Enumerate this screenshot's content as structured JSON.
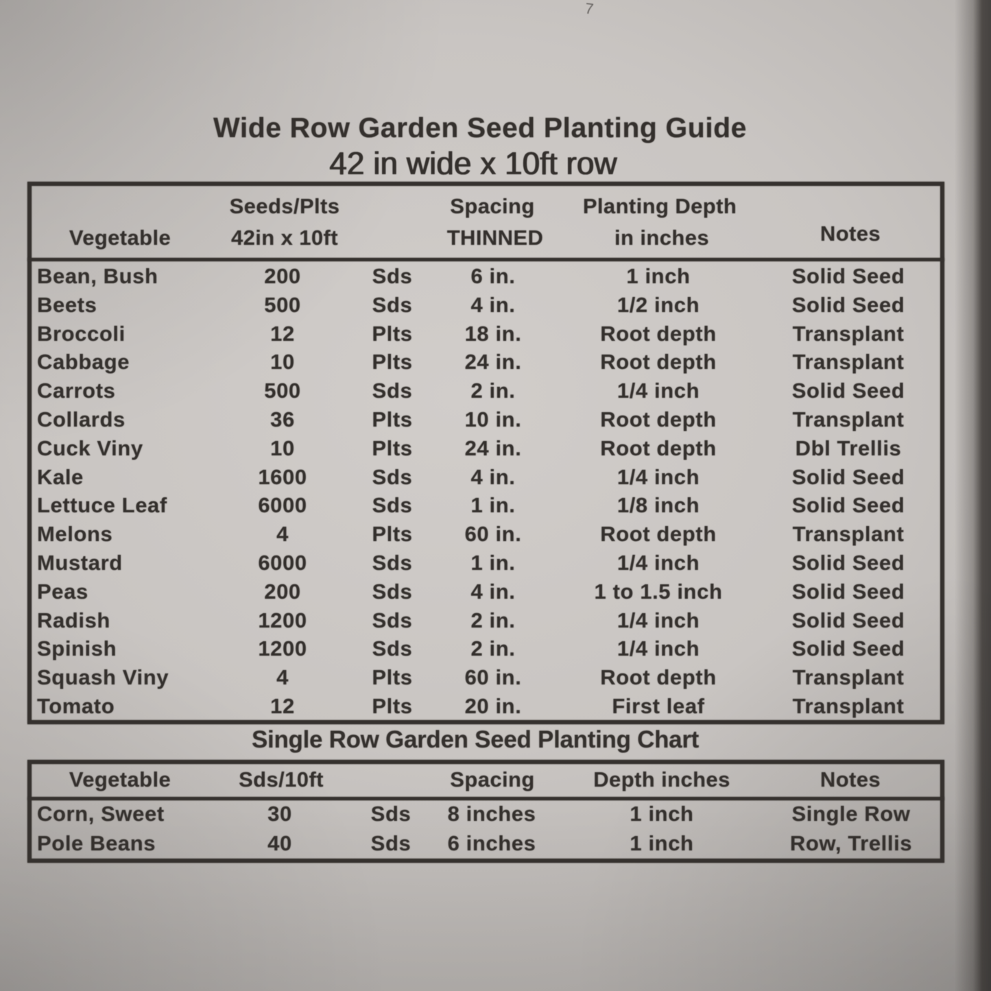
{
  "annotations": {
    "handwritten_mark": "7"
  },
  "title": "Wide Row Garden Seed Planting Guide",
  "subtitle": "42 in wide x 10ft row",
  "colors": {
    "ink": "#34302d",
    "paper_light": "#d1cdca",
    "paper_dark": "#aaa6a3",
    "edge_shadow": "#454240"
  },
  "wide_row_table": {
    "headers": {
      "vegetable": "Vegetable",
      "seeds_line1": "Seeds/Plts",
      "seeds_line2": "42in x 10ft",
      "spacing_line1": "Spacing",
      "spacing_line2": "THINNED",
      "depth_line1": "Planting Depth",
      "depth_line2": "in inches",
      "notes": "Notes"
    },
    "rows": [
      {
        "vegetable": "Bean, Bush",
        "quantity": "200",
        "unit": "Sds",
        "spacing": "6 in.",
        "depth": "1 inch",
        "notes": "Solid Seed"
      },
      {
        "vegetable": "Beets",
        "quantity": "500",
        "unit": "Sds",
        "spacing": "4 in.",
        "depth": "1/2 inch",
        "notes": "Solid Seed"
      },
      {
        "vegetable": "Broccoli",
        "quantity": "12",
        "unit": "Plts",
        "spacing": "18 in.",
        "depth": "Root depth",
        "notes": "Transplant"
      },
      {
        "vegetable": "Cabbage",
        "quantity": "10",
        "unit": "Plts",
        "spacing": "24 in.",
        "depth": "Root depth",
        "notes": "Transplant"
      },
      {
        "vegetable": "Carrots",
        "quantity": "500",
        "unit": "Sds",
        "spacing": "2 in.",
        "depth": "1/4 inch",
        "notes": "Solid Seed"
      },
      {
        "vegetable": "Collards",
        "quantity": "36",
        "unit": "Plts",
        "spacing": "10 in.",
        "depth": "Root depth",
        "notes": "Transplant"
      },
      {
        "vegetable": "Cuck Viny",
        "quantity": "10",
        "unit": "Plts",
        "spacing": "24 in.",
        "depth": "Root depth",
        "notes": "Dbl Trellis"
      },
      {
        "vegetable": "Kale",
        "quantity": "1600",
        "unit": "Sds",
        "spacing": "4 in.",
        "depth": "1/4 inch",
        "notes": "Solid Seed"
      },
      {
        "vegetable": "Lettuce Leaf",
        "quantity": "6000",
        "unit": "Sds",
        "spacing": "1 in.",
        "depth": "1/8 inch",
        "notes": "Solid Seed"
      },
      {
        "vegetable": "Melons",
        "quantity": "4",
        "unit": "Plts",
        "spacing": "60 in.",
        "depth": "Root depth",
        "notes": "Transplant"
      },
      {
        "vegetable": "Mustard",
        "quantity": "6000",
        "unit": "Sds",
        "spacing": "1 in.",
        "depth": "1/4 inch",
        "notes": "Solid Seed"
      },
      {
        "vegetable": "Peas",
        "quantity": "200",
        "unit": "Sds",
        "spacing": "4 in.",
        "depth": "1 to 1.5 inch",
        "notes": "Solid Seed"
      },
      {
        "vegetable": "Radish",
        "quantity": "1200",
        "unit": "Sds",
        "spacing": "2 in.",
        "depth": "1/4 inch",
        "notes": "Solid Seed"
      },
      {
        "vegetable": "Spinish",
        "quantity": "1200",
        "unit": "Sds",
        "spacing": "2 in.",
        "depth": "1/4 inch",
        "notes": "Solid Seed"
      },
      {
        "vegetable": "Squash Viny",
        "quantity": "4",
        "unit": "Plts",
        "spacing": "60 in.",
        "depth": "Root depth",
        "notes": "Transplant"
      },
      {
        "vegetable": "Tomato",
        "quantity": "12",
        "unit": "Plts",
        "spacing": "20 in.",
        "depth": "First leaf",
        "notes": "Transplant"
      }
    ]
  },
  "single_row_title": "Single Row Garden Seed Planting Chart",
  "single_row_table": {
    "headers": {
      "vegetable": "Vegetable",
      "seeds": "Sds/10ft",
      "spacing": "Spacing",
      "depth": "Depth inches",
      "notes": "Notes"
    },
    "rows": [
      {
        "vegetable": "Corn, Sweet",
        "quantity": "30",
        "unit": "Sds",
        "spacing": "8 inches",
        "depth": "1 inch",
        "notes": "Single Row"
      },
      {
        "vegetable": "Pole Beans",
        "quantity": "40",
        "unit": "Sds",
        "spacing": "6 inches",
        "depth": "1 inch",
        "notes": "Row, Trellis"
      }
    ]
  }
}
